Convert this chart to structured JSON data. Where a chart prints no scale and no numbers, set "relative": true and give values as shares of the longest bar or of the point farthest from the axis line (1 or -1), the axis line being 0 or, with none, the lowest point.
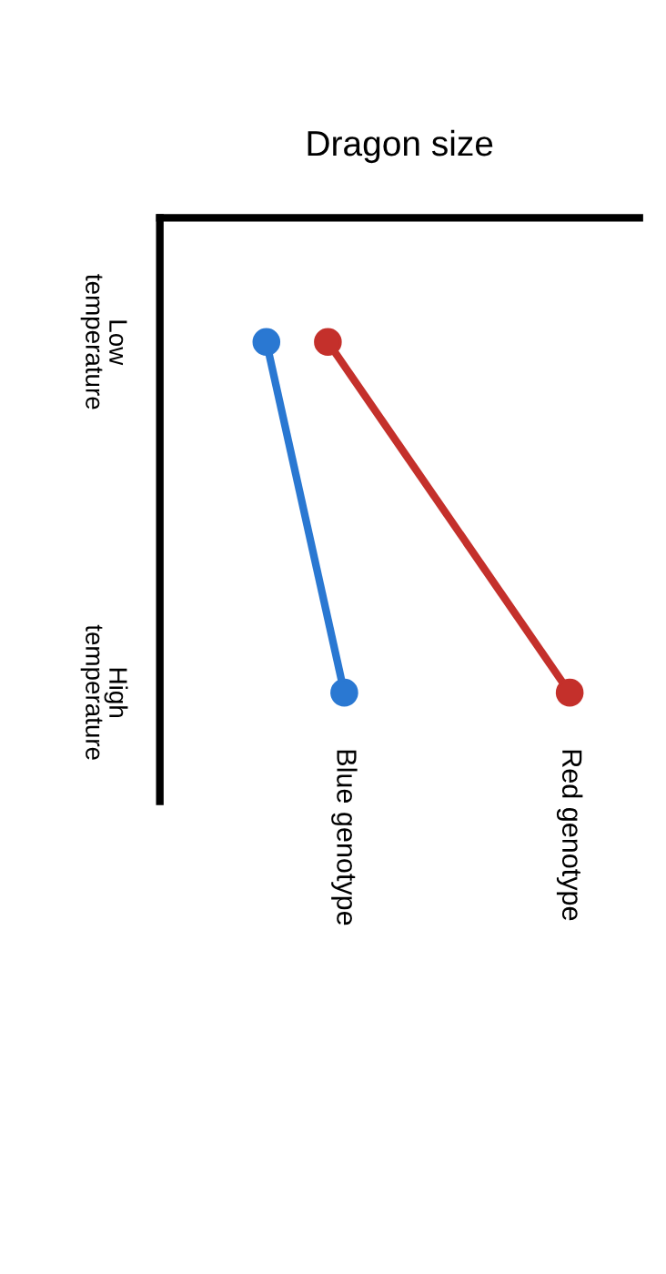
{
  "chart_data": {
    "type": "line",
    "title": "Dragon size",
    "categories": [
      "Low\ntemperature",
      "High\ntemperature"
    ],
    "relative": true,
    "orientation": "horizontal",
    "marker": "circle",
    "line_style": "solid",
    "grid": false,
    "legend": false,
    "series": [
      {
        "name": "Red genotype",
        "color": "#c4302b",
        "values": [
          0.41,
          1
        ]
      },
      {
        "name": "Blue genotype",
        "color": "#2a78d2",
        "values": [
          0.26,
          0.45
        ]
      }
    ]
  }
}
